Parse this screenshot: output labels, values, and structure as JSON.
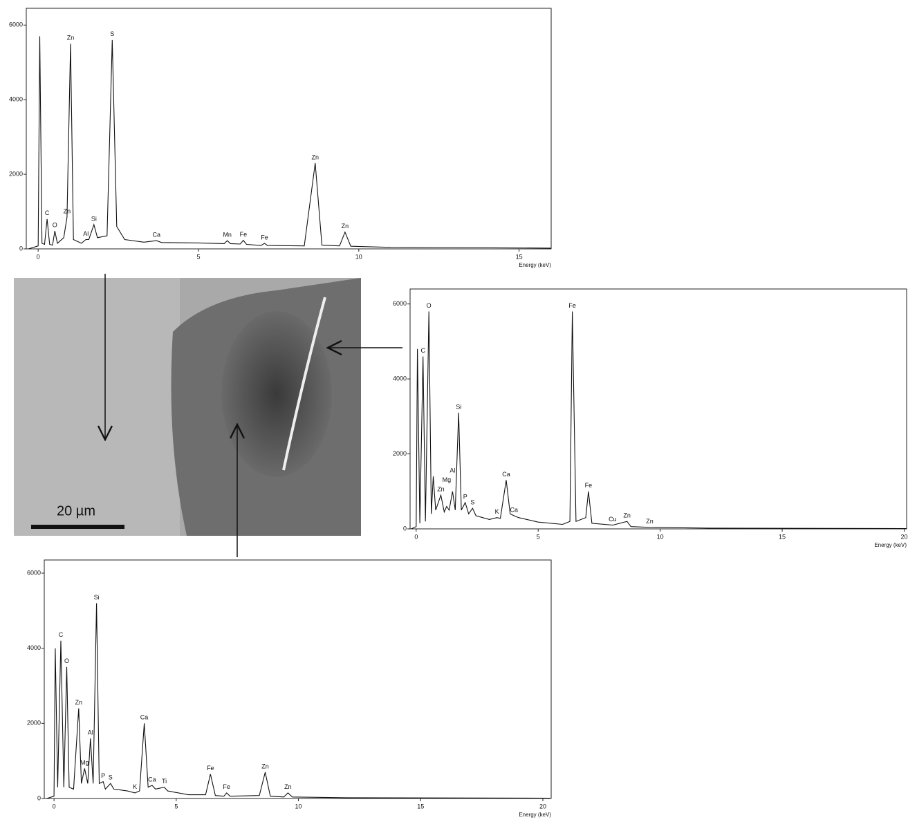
{
  "chart_data": [
    {
      "type": "line",
      "xlabel": "Energy (keV)",
      "color": "#111111",
      "xlim": [
        -0.37,
        16
      ],
      "ylim": [
        0,
        6450
      ],
      "xticks": [
        0,
        5,
        10,
        15
      ],
      "yticks": [
        0,
        2000,
        4000,
        6000
      ],
      "x": [
        -0.3,
        0,
        0.05,
        0.12,
        0.2,
        0.28,
        0.36,
        0.45,
        0.52,
        0.6,
        0.8,
        0.9,
        1.01,
        1.1,
        1.35,
        1.49,
        1.58,
        1.74,
        1.85,
        2.15,
        2.31,
        2.45,
        2.7,
        3.3,
        3.69,
        3.85,
        5.0,
        5.8,
        5.9,
        6.0,
        6.3,
        6.4,
        6.5,
        6.95,
        7.06,
        7.15,
        8.3,
        8.64,
        8.85,
        9.4,
        9.57,
        9.75,
        11,
        16
      ],
      "values": [
        0,
        80,
        5700,
        150,
        120,
        800,
        120,
        100,
        480,
        150,
        300,
        850,
        5500,
        250,
        150,
        250,
        250,
        650,
        300,
        350,
        5600,
        600,
        250,
        180,
        220,
        170,
        160,
        140,
        220,
        140,
        130,
        230,
        120,
        90,
        150,
        90,
        80,
        2300,
        100,
        80,
        450,
        70,
        40,
        20
      ],
      "annotations": [
        {
          "text": "C",
          "x": 0.28,
          "y": 800
        },
        {
          "text": "O",
          "x": 0.52,
          "y": 480
        },
        {
          "text": "Zn",
          "x": 0.9,
          "y": 850
        },
        {
          "text": "Zn",
          "x": 1.01,
          "y": 5500
        },
        {
          "text": "Al",
          "x": 1.49,
          "y": 250
        },
        {
          "text": "Si",
          "x": 1.74,
          "y": 650
        },
        {
          "text": "S",
          "x": 2.31,
          "y": 5600
        },
        {
          "text": "Ca",
          "x": 3.69,
          "y": 220
        },
        {
          "text": "Mn",
          "x": 5.9,
          "y": 220
        },
        {
          "text": "Fe",
          "x": 6.4,
          "y": 230
        },
        {
          "text": "Fe",
          "x": 7.06,
          "y": 150
        },
        {
          "text": "Zn",
          "x": 8.64,
          "y": 2300
        },
        {
          "text": "Zn",
          "x": 9.57,
          "y": 450
        }
      ]
    },
    {
      "type": "line",
      "xlabel": "Energy (keV)",
      "color": "#111111",
      "xlim": [
        -0.25,
        20.1
      ],
      "ylim": [
        0,
        6400
      ],
      "xticks": [
        0,
        5,
        10,
        15,
        20
      ],
      "yticks": [
        0,
        2000,
        4000,
        6000
      ],
      "x": [
        -0.2,
        0,
        0.05,
        0.15,
        0.28,
        0.38,
        0.52,
        0.62,
        0.7,
        0.8,
        1.01,
        1.15,
        1.25,
        1.35,
        1.49,
        1.6,
        1.74,
        1.85,
        2.01,
        2.15,
        2.31,
        2.45,
        3.0,
        3.31,
        3.45,
        3.69,
        3.85,
        4.01,
        4.2,
        5.0,
        6.0,
        6.3,
        6.4,
        6.55,
        6.95,
        7.06,
        7.2,
        8.05,
        8.64,
        8.8,
        9.57,
        12,
        20.1
      ],
      "values": [
        0,
        60,
        4800,
        150,
        4600,
        200,
        5800,
        400,
        1400,
        500,
        900,
        450,
        600,
        500,
        1000,
        500,
        3100,
        500,
        700,
        400,
        550,
        350,
        250,
        300,
        280,
        1300,
        400,
        350,
        300,
        180,
        120,
        200,
        5800,
        200,
        300,
        1000,
        150,
        100,
        200,
        60,
        40,
        20,
        10
      ],
      "annotations": [
        {
          "text": "C",
          "x": 0.28,
          "y": 4600
        },
        {
          "text": "O",
          "x": 0.52,
          "y": 5800
        },
        {
          "text": "Zn",
          "x": 1.01,
          "y": 900
        },
        {
          "text": "Mg",
          "x": 1.25,
          "y": 1150
        },
        {
          "text": "Al",
          "x": 1.49,
          "y": 1400
        },
        {
          "text": "Si",
          "x": 1.74,
          "y": 3100
        },
        {
          "text": "P",
          "x": 2.01,
          "y": 700
        },
        {
          "text": "S",
          "x": 2.31,
          "y": 550
        },
        {
          "text": "K",
          "x": 3.31,
          "y": 300
        },
        {
          "text": "Ca",
          "x": 3.69,
          "y": 1300
        },
        {
          "text": "Ca",
          "x": 4.01,
          "y": 350
        },
        {
          "text": "Fe",
          "x": 6.4,
          "y": 5800
        },
        {
          "text": "Fe",
          "x": 7.06,
          "y": 1000
        },
        {
          "text": "Cu",
          "x": 8.05,
          "y": 100
        },
        {
          "text": "Zn",
          "x": 8.64,
          "y": 200
        },
        {
          "text": "Zn",
          "x": 9.57,
          "y": 40
        }
      ]
    },
    {
      "type": "line",
      "xlabel": "Energy (keV)",
      "color": "#111111",
      "xlim": [
        -0.4,
        20.34
      ],
      "ylim": [
        0,
        6350
      ],
      "xticks": [
        0,
        5,
        10,
        15,
        20
      ],
      "yticks": [
        0,
        2000,
        4000,
        6000
      ],
      "x": [
        -0.3,
        0,
        0.05,
        0.15,
        0.28,
        0.4,
        0.52,
        0.62,
        0.8,
        1.01,
        1.12,
        1.25,
        1.38,
        1.49,
        1.6,
        1.74,
        1.85,
        2.01,
        2.1,
        2.31,
        2.45,
        3.0,
        3.31,
        3.5,
        3.69,
        3.85,
        4.01,
        4.15,
        4.51,
        4.65,
        5.5,
        6.2,
        6.4,
        6.6,
        6.95,
        7.06,
        7.2,
        8.4,
        8.64,
        8.85,
        9.4,
        9.57,
        9.75,
        12,
        20.3
      ],
      "values": [
        0,
        60,
        4000,
        300,
        4200,
        300,
        3500,
        300,
        250,
        2400,
        400,
        800,
        400,
        1600,
        400,
        5200,
        400,
        450,
        250,
        400,
        250,
        200,
        150,
        200,
        2000,
        300,
        350,
        250,
        300,
        200,
        100,
        100,
        650,
        80,
        60,
        150,
        60,
        80,
        700,
        60,
        40,
        150,
        40,
        20,
        10
      ],
      "annotations": [
        {
          "text": "C",
          "x": 0.28,
          "y": 4200
        },
        {
          "text": "O",
          "x": 0.52,
          "y": 3500
        },
        {
          "text": "Zn",
          "x": 1.01,
          "y": 2400
        },
        {
          "text": "Mg",
          "x": 1.25,
          "y": 800
        },
        {
          "text": "Al",
          "x": 1.49,
          "y": 1600
        },
        {
          "text": "Si",
          "x": 1.74,
          "y": 5200
        },
        {
          "text": "P",
          "x": 2.01,
          "y": 450
        },
        {
          "text": "S",
          "x": 2.31,
          "y": 400
        },
        {
          "text": "K",
          "x": 3.31,
          "y": 150
        },
        {
          "text": "Ca",
          "x": 3.69,
          "y": 2000
        },
        {
          "text": "Ca",
          "x": 4.01,
          "y": 350
        },
        {
          "text": "Ti",
          "x": 4.51,
          "y": 300
        },
        {
          "text": "Fe",
          "x": 6.4,
          "y": 650
        },
        {
          "text": "Fe",
          "x": 7.06,
          "y": 150
        },
        {
          "text": "Zn",
          "x": 8.64,
          "y": 700
        },
        {
          "text": "Zn",
          "x": 9.57,
          "y": 150
        }
      ]
    }
  ],
  "image": {
    "scale_bar": "20 µm"
  }
}
